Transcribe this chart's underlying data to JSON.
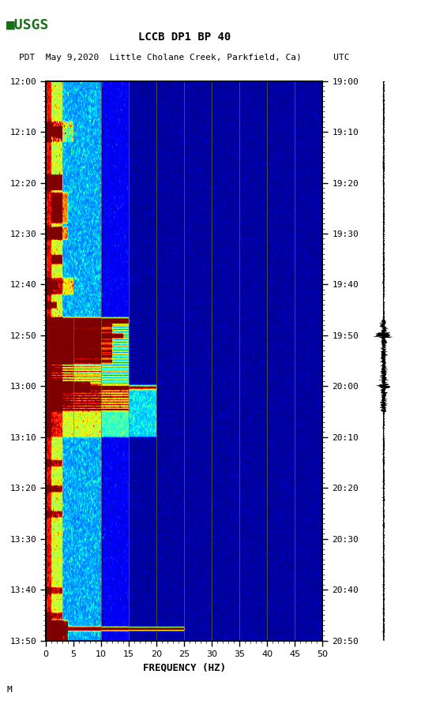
{
  "title_line1": "LCCB DP1 BP 40",
  "title_line2": "PDT  May 9,2020  Little Cholane Creek, Parkfield, Ca)      UTC",
  "left_times": [
    "12:00",
    "12:10",
    "12:20",
    "12:30",
    "12:40",
    "12:50",
    "13:00",
    "13:10",
    "13:20",
    "13:30",
    "13:40",
    "13:50"
  ],
  "right_times": [
    "19:00",
    "19:10",
    "19:20",
    "19:30",
    "19:40",
    "19:50",
    "20:00",
    "20:10",
    "20:20",
    "20:30",
    "20:40",
    "20:50"
  ],
  "freq_min": 0,
  "freq_max": 50,
  "freq_ticks": [
    0,
    5,
    10,
    15,
    20,
    25,
    30,
    35,
    40,
    45,
    50
  ],
  "xlabel": "FREQUENCY (HZ)",
  "n_time": 440,
  "n_freq": 500,
  "vertical_line_color": "#808000",
  "bg_color": "#ffffff"
}
